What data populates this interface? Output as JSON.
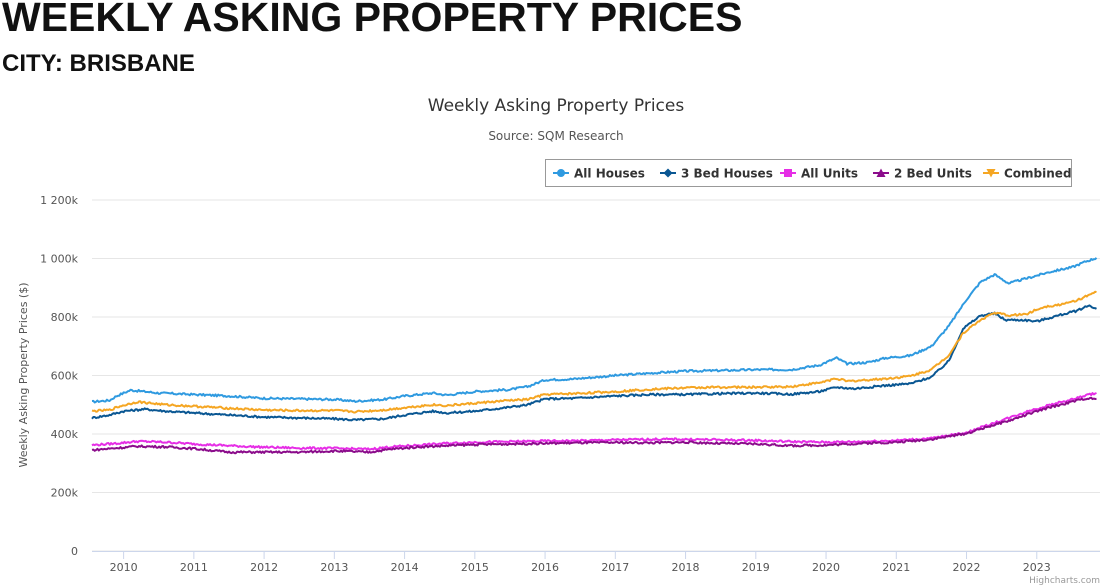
{
  "header": {
    "title": "WEEKLY ASKING PROPERTY PRICES",
    "subtitle": "CITY: BRISBANE"
  },
  "chart_data": {
    "type": "line",
    "title": "Weekly Asking Property Prices",
    "subtitle": "Source: SQM Research",
    "xlabel": "",
    "ylabel": "Weekly Asking Property Prices ($)",
    "xlim": [
      2009.55,
      2023.9
    ],
    "ylim": [
      0,
      1200000
    ],
    "y_ticks": [
      0,
      200000,
      400000,
      600000,
      800000,
      1000000,
      1200000
    ],
    "y_tick_labels": [
      "0",
      "200k",
      "400k",
      "600k",
      "800k",
      "1 000k",
      "1 200k"
    ],
    "x_ticks": [
      2010,
      2011,
      2012,
      2013,
      2014,
      2015,
      2016,
      2017,
      2018,
      2019,
      2020,
      2021,
      2022,
      2023
    ],
    "x_tick_labels": [
      "2010",
      "2011",
      "2012",
      "2013",
      "2014",
      "2015",
      "2016",
      "2017",
      "2018",
      "2019",
      "2020",
      "2021",
      "2022",
      "2023"
    ],
    "grid": true,
    "legend_position": "top-right",
    "credits": "Highcharts.com",
    "series": [
      {
        "name": "All Houses",
        "color": "#2f9ae0",
        "marker": "circle",
        "points": [
          [
            2009.55,
            510000
          ],
          [
            2009.8,
            515000
          ],
          [
            2009.9,
            530000
          ],
          [
            2010.1,
            550000
          ],
          [
            2010.5,
            540000
          ],
          [
            2011.0,
            535000
          ],
          [
            2011.5,
            530000
          ],
          [
            2012.0,
            522000
          ],
          [
            2012.5,
            520000
          ],
          [
            2013.0,
            518000
          ],
          [
            2013.3,
            512000
          ],
          [
            2013.7,
            518000
          ],
          [
            2014.0,
            530000
          ],
          [
            2014.4,
            540000
          ],
          [
            2014.6,
            533000
          ],
          [
            2015.0,
            545000
          ],
          [
            2015.5,
            552000
          ],
          [
            2015.75,
            562000
          ],
          [
            2016.0,
            585000
          ],
          [
            2016.4,
            588000
          ],
          [
            2017.0,
            600000
          ],
          [
            2017.5,
            608000
          ],
          [
            2018.0,
            615000
          ],
          [
            2018.5,
            617000
          ],
          [
            2019.0,
            620000
          ],
          [
            2019.5,
            620000
          ],
          [
            2019.9,
            635000
          ],
          [
            2020.15,
            660000
          ],
          [
            2020.3,
            640000
          ],
          [
            2020.6,
            645000
          ],
          [
            2020.85,
            660000
          ],
          [
            2021.2,
            668000
          ],
          [
            2021.5,
            700000
          ],
          [
            2021.75,
            770000
          ],
          [
            2022.0,
            860000
          ],
          [
            2022.2,
            920000
          ],
          [
            2022.4,
            945000
          ],
          [
            2022.6,
            915000
          ],
          [
            2022.9,
            935000
          ],
          [
            2023.2,
            955000
          ],
          [
            2023.5,
            970000
          ],
          [
            2023.7,
            990000
          ],
          [
            2023.85,
            1002000
          ]
        ]
      },
      {
        "name": "3 Bed Houses",
        "color": "#0a5793",
        "marker": "diamond",
        "points": [
          [
            2009.55,
            455000
          ],
          [
            2009.8,
            465000
          ],
          [
            2010.0,
            478000
          ],
          [
            2010.3,
            485000
          ],
          [
            2010.6,
            478000
          ],
          [
            2011.0,
            472000
          ],
          [
            2011.5,
            465000
          ],
          [
            2012.0,
            458000
          ],
          [
            2012.5,
            455000
          ],
          [
            2013.0,
            452000
          ],
          [
            2013.3,
            448000
          ],
          [
            2013.7,
            452000
          ],
          [
            2014.0,
            465000
          ],
          [
            2014.4,
            478000
          ],
          [
            2014.6,
            472000
          ],
          [
            2015.0,
            478000
          ],
          [
            2015.5,
            492000
          ],
          [
            2015.75,
            500000
          ],
          [
            2016.0,
            520000
          ],
          [
            2016.4,
            522000
          ],
          [
            2017.0,
            530000
          ],
          [
            2017.5,
            535000
          ],
          [
            2018.0,
            535000
          ],
          [
            2018.5,
            538000
          ],
          [
            2019.0,
            540000
          ],
          [
            2019.5,
            536000
          ],
          [
            2019.9,
            545000
          ],
          [
            2020.15,
            560000
          ],
          [
            2020.4,
            555000
          ],
          [
            2020.8,
            565000
          ],
          [
            2021.2,
            572000
          ],
          [
            2021.5,
            595000
          ],
          [
            2021.75,
            650000
          ],
          [
            2021.95,
            760000
          ],
          [
            2022.2,
            805000
          ],
          [
            2022.4,
            812000
          ],
          [
            2022.55,
            790000
          ],
          [
            2022.8,
            790000
          ],
          [
            2023.0,
            785000
          ],
          [
            2023.3,
            805000
          ],
          [
            2023.55,
            820000
          ],
          [
            2023.75,
            840000
          ],
          [
            2023.85,
            828000
          ]
        ]
      },
      {
        "name": "All Units",
        "color": "#e62ee6",
        "marker": "square",
        "points": [
          [
            2009.55,
            362000
          ],
          [
            2009.9,
            368000
          ],
          [
            2010.2,
            375000
          ],
          [
            2010.6,
            372000
          ],
          [
            2011.0,
            366000
          ],
          [
            2011.5,
            360000
          ],
          [
            2012.0,
            355000
          ],
          [
            2012.5,
            352000
          ],
          [
            2013.0,
            351000
          ],
          [
            2013.5,
            348000
          ],
          [
            2013.8,
            356000
          ],
          [
            2014.2,
            362000
          ],
          [
            2014.6,
            368000
          ],
          [
            2015.0,
            372000
          ],
          [
            2015.5,
            374000
          ],
          [
            2016.0,
            376000
          ],
          [
            2016.5,
            377000
          ],
          [
            2017.0,
            380000
          ],
          [
            2017.5,
            382000
          ],
          [
            2018.0,
            382000
          ],
          [
            2018.5,
            380000
          ],
          [
            2019.0,
            378000
          ],
          [
            2019.5,
            374000
          ],
          [
            2020.0,
            372000
          ],
          [
            2020.5,
            374000
          ],
          [
            2021.0,
            378000
          ],
          [
            2021.5,
            385000
          ],
          [
            2022.0,
            405000
          ],
          [
            2022.3,
            430000
          ],
          [
            2022.6,
            455000
          ],
          [
            2022.9,
            480000
          ],
          [
            2023.2,
            500000
          ],
          [
            2023.5,
            518000
          ],
          [
            2023.7,
            532000
          ],
          [
            2023.85,
            540000
          ]
        ]
      },
      {
        "name": "2 Bed Units",
        "color": "#8b0c8b",
        "marker": "triangle",
        "points": [
          [
            2009.55,
            345000
          ],
          [
            2009.9,
            352000
          ],
          [
            2010.2,
            358000
          ],
          [
            2010.6,
            356000
          ],
          [
            2011.0,
            350000
          ],
          [
            2011.5,
            338000
          ],
          [
            2012.0,
            338000
          ],
          [
            2012.5,
            338000
          ],
          [
            2013.0,
            342000
          ],
          [
            2013.5,
            338000
          ],
          [
            2013.8,
            348000
          ],
          [
            2014.2,
            356000
          ],
          [
            2014.6,
            360000
          ],
          [
            2015.0,
            364000
          ],
          [
            2015.5,
            366000
          ],
          [
            2016.0,
            368000
          ],
          [
            2016.5,
            370000
          ],
          [
            2017.0,
            371000
          ],
          [
            2017.5,
            370000
          ],
          [
            2018.0,
            372000
          ],
          [
            2018.5,
            368000
          ],
          [
            2019.0,
            366000
          ],
          [
            2019.5,
            360000
          ],
          [
            2020.0,
            362000
          ],
          [
            2020.5,
            368000
          ],
          [
            2021.0,
            372000
          ],
          [
            2021.5,
            382000
          ],
          [
            2022.0,
            402000
          ],
          [
            2022.3,
            425000
          ],
          [
            2022.6,
            445000
          ],
          [
            2022.9,
            470000
          ],
          [
            2023.2,
            492000
          ],
          [
            2023.5,
            510000
          ],
          [
            2023.7,
            522000
          ],
          [
            2023.85,
            520000
          ]
        ]
      },
      {
        "name": "Combined",
        "color": "#f5a623",
        "marker": "triangle-down",
        "points": [
          [
            2009.55,
            478000
          ],
          [
            2009.8,
            482000
          ],
          [
            2009.95,
            495000
          ],
          [
            2010.2,
            510000
          ],
          [
            2010.6,
            500000
          ],
          [
            2011.0,
            495000
          ],
          [
            2011.5,
            488000
          ],
          [
            2012.0,
            482000
          ],
          [
            2012.5,
            480000
          ],
          [
            2013.0,
            480000
          ],
          [
            2013.3,
            476000
          ],
          [
            2013.7,
            482000
          ],
          [
            2014.0,
            490000
          ],
          [
            2014.4,
            500000
          ],
          [
            2014.6,
            497000
          ],
          [
            2015.0,
            505000
          ],
          [
            2015.5,
            515000
          ],
          [
            2015.75,
            518000
          ],
          [
            2016.0,
            535000
          ],
          [
            2016.4,
            538000
          ],
          [
            2017.0,
            545000
          ],
          [
            2017.5,
            553000
          ],
          [
            2018.0,
            558000
          ],
          [
            2018.5,
            560000
          ],
          [
            2019.0,
            560000
          ],
          [
            2019.5,
            562000
          ],
          [
            2019.9,
            575000
          ],
          [
            2020.15,
            590000
          ],
          [
            2020.3,
            580000
          ],
          [
            2020.6,
            585000
          ],
          [
            2020.9,
            590000
          ],
          [
            2021.2,
            598000
          ],
          [
            2021.5,
            620000
          ],
          [
            2021.75,
            670000
          ],
          [
            2021.95,
            745000
          ],
          [
            2022.2,
            790000
          ],
          [
            2022.4,
            815000
          ],
          [
            2022.6,
            805000
          ],
          [
            2022.85,
            810000
          ],
          [
            2023.1,
            835000
          ],
          [
            2023.4,
            845000
          ],
          [
            2023.6,
            860000
          ],
          [
            2023.75,
            875000
          ],
          [
            2023.85,
            885000
          ]
        ]
      }
    ]
  }
}
